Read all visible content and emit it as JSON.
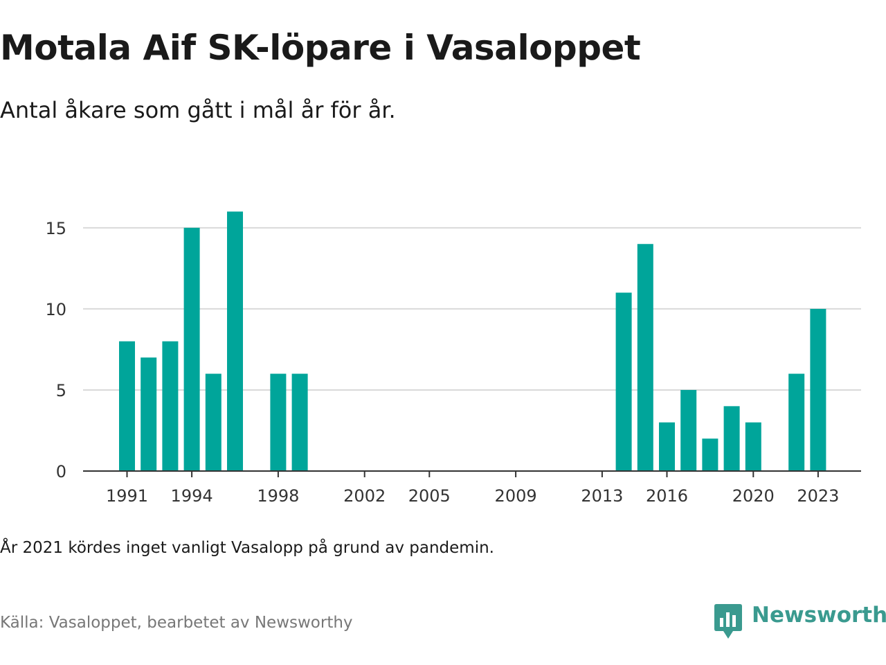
{
  "title": "Motala Aif SK-löpare i Vasaloppet",
  "subtitle": "Antal åkare som gått i mål år för år.",
  "note": "År 2021 kördes inget vanligt Vasalopp på grund av pandemin.",
  "source": "Källa: Vasaloppet, bearbetet av Newsworthy",
  "logo": {
    "text": "Newsworthy",
    "icon": "newsworthy-logo-icon"
  },
  "colors": {
    "bar": "#00a59a",
    "brand": "#3a9a8f",
    "grid": "#d9d9d9",
    "axis": "#333333",
    "muted": "#777777"
  },
  "chart_data": {
    "type": "bar",
    "x": [
      1991,
      1992,
      1993,
      1994,
      1995,
      1996,
      1997,
      1998,
      1999,
      2000,
      2001,
      2002,
      2003,
      2004,
      2005,
      2006,
      2007,
      2008,
      2009,
      2010,
      2011,
      2012,
      2013,
      2014,
      2015,
      2016,
      2017,
      2018,
      2019,
      2020,
      2021,
      2022,
      2023
    ],
    "values": [
      8,
      7,
      8,
      15,
      6,
      16,
      null,
      6,
      6,
      null,
      null,
      null,
      null,
      null,
      null,
      null,
      null,
      null,
      null,
      null,
      null,
      null,
      null,
      11,
      14,
      3,
      5,
      2,
      4,
      3,
      null,
      6,
      10
    ],
    "xticks": [
      "1991",
      "1994",
      "1998",
      "2002",
      "2005",
      "2009",
      "2013",
      "2016",
      "2020",
      "2023"
    ],
    "yticks": [
      "0",
      "5",
      "10",
      "15"
    ],
    "ylim": [
      0,
      17
    ],
    "xlabel": "",
    "ylabel": "",
    "grid": true
  }
}
